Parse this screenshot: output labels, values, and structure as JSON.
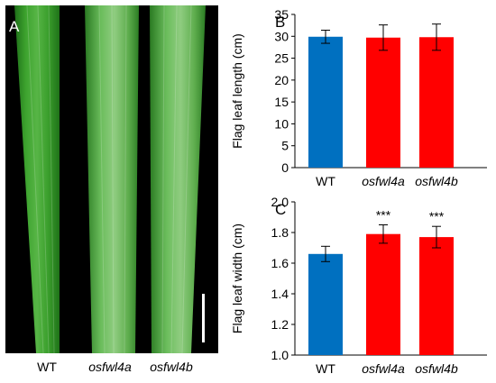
{
  "panels": {
    "photo_label": "A",
    "chart_b_label": "B",
    "chart_c_label": "C"
  },
  "photo": {
    "labels": [
      "WT",
      "osfwl4a",
      "osfwl4b"
    ],
    "colors": {
      "background": "#000000",
      "leaf": "#2e8f24",
      "scale_bar": "#ffffff"
    }
  },
  "colors": {
    "wt": "#0070c0",
    "mutant": "#ff0000"
  },
  "chart_data": [
    {
      "panel": "B",
      "type": "bar",
      "categories": [
        "WT",
        "osfwl4a",
        "osfwl4b"
      ],
      "values": [
        29.9,
        29.7,
        29.8
      ],
      "errors": [
        1.5,
        2.9,
        3.0
      ],
      "significance": [
        "",
        "",
        ""
      ],
      "ylabel": "Flag leaf length (cm)",
      "ylim": [
        0,
        35
      ],
      "yticks": [
        0,
        5,
        10,
        15,
        20,
        25,
        30,
        35
      ],
      "ytick_labels": [
        "0",
        "5",
        "10",
        "15",
        "20",
        "25",
        "30",
        "35"
      ],
      "grid": false,
      "legend": "none"
    },
    {
      "panel": "C",
      "type": "bar",
      "categories": [
        "WT",
        "osfwl4a",
        "osfwl4b"
      ],
      "values": [
        1.66,
        1.79,
        1.77
      ],
      "errors": [
        0.05,
        0.06,
        0.07
      ],
      "significance": [
        "",
        "***",
        "***"
      ],
      "ylabel": "Flag leaf width (cm)",
      "ylim": [
        1.0,
        2.0
      ],
      "yticks": [
        1.0,
        1.2,
        1.4,
        1.6,
        1.8,
        2.0
      ],
      "ytick_labels": [
        "1.0",
        "1.2",
        "1.4",
        "1.6",
        "1.8",
        "2.0"
      ],
      "grid": false,
      "legend": "none"
    }
  ]
}
